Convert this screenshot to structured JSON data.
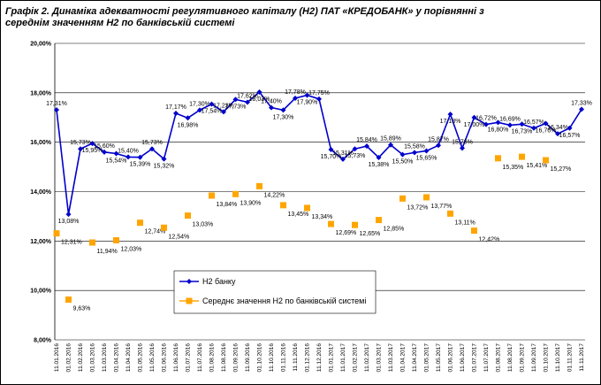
{
  "chart_data": {
    "type": "line",
    "title": "Графік 2. Динаміка адекватності регулятивного капіталу (Н2) ПАТ «КРЕДОБАНК» у порівнянні з середнім значенням Н2 по банківській системі",
    "categories": [
      "11.01.2016",
      "01.02.2016",
      "11.02.2016",
      "01.03.2016",
      "11.03.2016",
      "01.04.2016",
      "11.04.2016",
      "01.05.2016",
      "11.05.2016",
      "01.06.2016",
      "11.06.2016",
      "01.07.2016",
      "11.07.2016",
      "01.08.2016",
      "11.08.2016",
      "01.09.2016",
      "11.09.2016",
      "01.10.2016",
      "11.10.2016",
      "01.11.2016",
      "11.11.2016",
      "01.12.2016",
      "11.12.2016",
      "01.01.2017",
      "11.01.2017",
      "01.02.2017",
      "11.02.2017",
      "01.03.2017",
      "11.03.2017",
      "01.04.2017",
      "11.04.2017",
      "01.05.2017",
      "11.05.2017",
      "01.06.2017",
      "11.06.2017",
      "01.07.2017",
      "11.07.2017",
      "01.08.2017",
      "11.08.2017",
      "01.09.2017",
      "11.09.2017",
      "01.10.2017",
      "11.10.2017",
      "01.11.2017",
      "11.11.2017"
    ],
    "series": [
      {
        "name": "Н2 банку",
        "color": "#0000cc",
        "marker": "diamond",
        "line": true,
        "values": [
          17.31,
          13.08,
          15.73,
          15.95,
          15.6,
          15.54,
          15.4,
          15.39,
          15.73,
          15.32,
          17.17,
          16.98,
          17.3,
          17.54,
          17.23,
          17.73,
          17.62,
          18.03,
          17.4,
          17.3,
          17.78,
          17.9,
          17.75,
          15.7,
          15.31,
          15.73,
          15.84,
          15.38,
          15.89,
          15.5,
          15.58,
          15.65,
          15.87,
          17.13,
          15.76,
          17.0,
          16.72,
          16.8,
          16.69,
          16.73,
          16.57,
          16.76,
          16.34,
          16.57,
          17.33
        ],
        "value_labels": [
          "17,31%",
          "13,08%",
          "15,73%",
          "15,95%",
          "15,60%",
          "15,54%",
          "15,40%",
          "15,39%",
          "15,73%",
          "15,32%",
          "17,17%",
          "16,98%",
          "17,30%",
          "17,54%",
          "17,23%",
          "17,73%",
          "17,62%",
          "18,03%",
          "17,40%",
          "17,30%",
          "17,78%",
          "17,90%",
          "17,75%",
          "15,70%",
          "15,31%",
          "15,73%",
          "15,84%",
          "15,38%",
          "15,89%",
          "15,50%",
          "15,58%",
          "15,65%",
          "15,87%",
          "17,13%",
          "15,76%",
          "17,00%",
          "16,72%",
          "16,80%",
          "16,69%",
          "16,73%",
          "16,57%",
          "16,76%",
          "16,34%",
          "16,57%",
          "17,33%"
        ]
      },
      {
        "name": "Середнє значення Н2 по банківській системі",
        "color": "#ffa500",
        "marker": "square",
        "line": false,
        "values": [
          12.31,
          9.63,
          null,
          11.94,
          null,
          12.03,
          null,
          12.74,
          null,
          12.54,
          null,
          13.03,
          null,
          13.84,
          null,
          13.9,
          null,
          14.22,
          null,
          13.45,
          null,
          13.34,
          null,
          12.69,
          null,
          12.65,
          null,
          12.85,
          null,
          13.72,
          null,
          13.77,
          null,
          13.11,
          null,
          12.42,
          null,
          15.35,
          null,
          15.41,
          null,
          15.27,
          null,
          null,
          null
        ],
        "value_labels": [
          "12,31%",
          "9,63%",
          null,
          "11,94%",
          null,
          "12,03%",
          null,
          "12,74%",
          null,
          "12,54%",
          null,
          "13,03%",
          null,
          "13,84%",
          null,
          "13,90%",
          null,
          "14,22%",
          null,
          "13,45%",
          null,
          "13,34%",
          null,
          "12,69%",
          null,
          "12,65%",
          null,
          "12,85%",
          null,
          "13,72%",
          null,
          "13,77%",
          null,
          "13,11%",
          null,
          "12,42%",
          null,
          "15,35%",
          null,
          "15,41%",
          null,
          "15,27%",
          null,
          null,
          null
        ]
      }
    ],
    "ylim": [
      8,
      20
    ],
    "yticks": [
      {
        "value": 8,
        "label": "8,00%"
      },
      {
        "value": 10,
        "label": "10,00%"
      },
      {
        "value": 12,
        "label": "12,00%"
      },
      {
        "value": 14,
        "label": "14,00%"
      },
      {
        "value": 16,
        "label": "16,00%"
      },
      {
        "value": 18,
        "label": "18,00%"
      },
      {
        "value": 20,
        "label": "20,00%"
      }
    ],
    "grid": true
  }
}
